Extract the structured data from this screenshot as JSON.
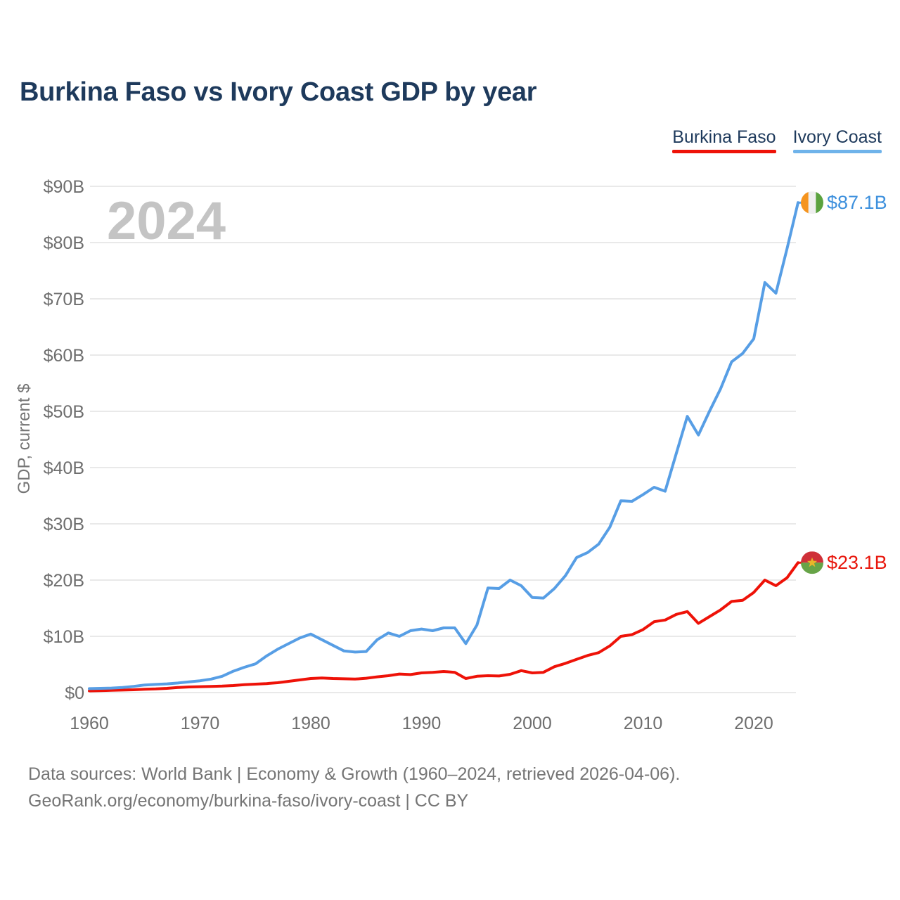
{
  "title": "Burkina Faso vs Ivory Coast GDP by year",
  "watermark": "2024",
  "legend": {
    "items": [
      {
        "label": "Burkina Faso",
        "color": "#ee1208"
      },
      {
        "label": "Ivory Coast",
        "color": "#6fb3ea"
      }
    ]
  },
  "footer": {
    "line1": "Data sources: World Bank | Economy & Growth (1960–2024, retrieved 2026-04-06).",
    "line2": "GeoRank.org/economy/burkina-faso/ivory-coast | CC BY"
  },
  "chart_data": {
    "type": "line",
    "title": "Burkina Faso vs Ivory Coast GDP by year",
    "xlabel": "",
    "ylabel": "GDP, current $",
    "xlim": [
      1960,
      2024
    ],
    "ylim": [
      0,
      90
    ],
    "grid": true,
    "legend_position": "top-right",
    "x_ticks": [
      1960,
      1970,
      1980,
      1990,
      2000,
      2010,
      2020
    ],
    "y_ticks": [
      {
        "value": 0,
        "label": "$0"
      },
      {
        "value": 10,
        "label": "$10B"
      },
      {
        "value": 20,
        "label": "$20B"
      },
      {
        "value": 30,
        "label": "$30B"
      },
      {
        "value": 40,
        "label": "$40B"
      },
      {
        "value": 50,
        "label": "$50B"
      },
      {
        "value": 60,
        "label": "$60B"
      },
      {
        "value": 70,
        "label": "$70B"
      },
      {
        "value": 80,
        "label": "$80B"
      },
      {
        "value": 90,
        "label": "$90B"
      }
    ],
    "x": [
      1960,
      1961,
      1962,
      1963,
      1964,
      1965,
      1966,
      1967,
      1968,
      1969,
      1970,
      1971,
      1972,
      1973,
      1974,
      1975,
      1976,
      1977,
      1978,
      1979,
      1980,
      1981,
      1982,
      1983,
      1984,
      1985,
      1986,
      1987,
      1988,
      1989,
      1990,
      1991,
      1992,
      1993,
      1994,
      1995,
      1996,
      1997,
      1998,
      1999,
      2000,
      2001,
      2002,
      2003,
      2004,
      2005,
      2006,
      2007,
      2008,
      2009,
      2010,
      2011,
      2012,
      2013,
      2014,
      2015,
      2016,
      2017,
      2018,
      2019,
      2020,
      2021,
      2022,
      2023,
      2024
    ],
    "series": [
      {
        "name": "Burkina Faso",
        "slug": "burkina-faso",
        "color": "#ee1208",
        "label_color": "#e8160c",
        "end_label": "$23.1B",
        "flag": "burkina-faso",
        "values": [
          0.3,
          0.35,
          0.4,
          0.45,
          0.5,
          0.6,
          0.65,
          0.75,
          0.9,
          1.0,
          1.05,
          1.1,
          1.15,
          1.25,
          1.4,
          1.5,
          1.6,
          1.75,
          2.0,
          2.25,
          2.5,
          2.6,
          2.5,
          2.45,
          2.4,
          2.55,
          2.8,
          3.0,
          3.3,
          3.2,
          3.5,
          3.6,
          3.75,
          3.6,
          2.5,
          2.9,
          3.0,
          2.95,
          3.25,
          3.9,
          3.5,
          3.6,
          4.6,
          5.2,
          5.9,
          6.6,
          7.1,
          8.3,
          10.0,
          10.3,
          11.2,
          12.6,
          12.9,
          13.9,
          14.4,
          12.3,
          13.5,
          14.7,
          16.2,
          16.4,
          17.8,
          20.0,
          19.0,
          20.4,
          23.1
        ]
      },
      {
        "name": "Ivory Coast",
        "slug": "ivory-coast",
        "color": "#579ee5",
        "label_color": "#3d90dd",
        "end_label": "$87.1B",
        "flag": "ivory-coast",
        "values": [
          0.7,
          0.75,
          0.8,
          0.9,
          1.1,
          1.35,
          1.45,
          1.55,
          1.7,
          1.9,
          2.1,
          2.4,
          2.9,
          3.8,
          4.5,
          5.1,
          6.5,
          7.7,
          8.7,
          9.7,
          10.4,
          9.4,
          8.4,
          7.4,
          7.2,
          7.3,
          9.4,
          10.6,
          10.0,
          11.0,
          11.3,
          11.0,
          11.5,
          11.5,
          8.7,
          12.0,
          18.6,
          18.5,
          20.0,
          19.0,
          16.9,
          16.8,
          18.5,
          20.8,
          24.0,
          24.9,
          26.4,
          29.4,
          34.1,
          34.0,
          35.2,
          36.5,
          35.8,
          42.5,
          49.1,
          45.8,
          50.0,
          54.0,
          58.8,
          60.3,
          62.9,
          72.9,
          71.0,
          78.9,
          87.1
        ]
      }
    ]
  },
  "flags": {
    "burkina-faso": {
      "top": "#cf3038",
      "bottom": "#67a447",
      "star": "#e8b62a"
    },
    "ivory-coast": {
      "left": "#f5941e",
      "middle": "#efefef",
      "right": "#5ba23f"
    }
  },
  "style_colors": {
    "grid": "#e9e9e9",
    "axis_text": "#6e6e6e",
    "watermark": "#c4c4c4"
  }
}
